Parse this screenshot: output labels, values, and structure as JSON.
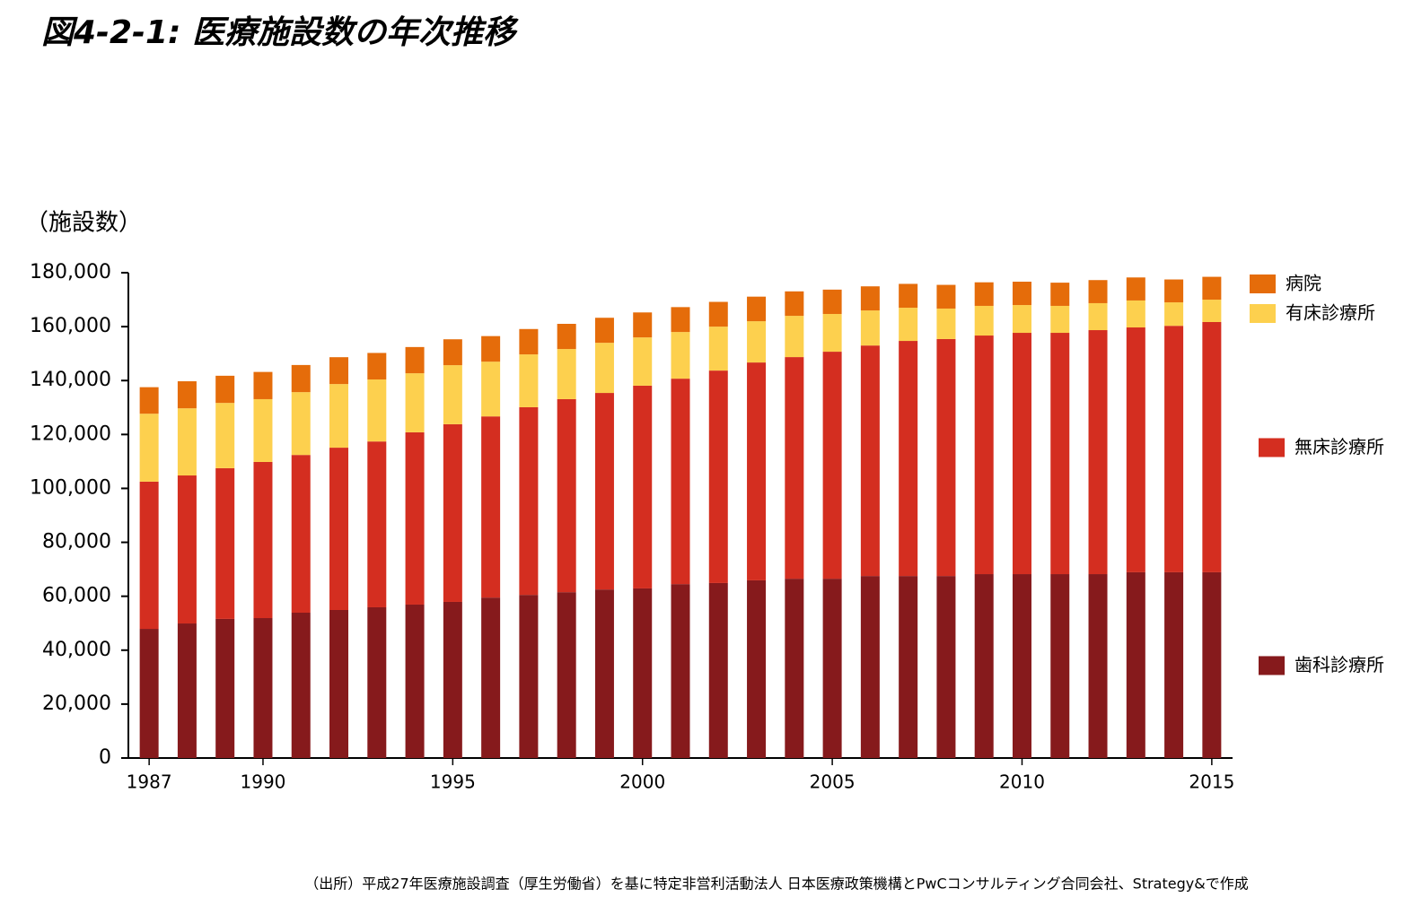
{
  "chart_data": {
    "type": "stacked-bar",
    "title": "図4-2-1: 医療施設数の年次推移",
    "y_label": "（施設数）",
    "source": "（出所）平成27年医療施設調査（厚生労働省）を基に特定非営利活動法人 日本医療政策機構とPwCコンサルティング合同会社、Strategy&で作成",
    "categories": [
      1987,
      null,
      null,
      1990,
      null,
      null,
      null,
      null,
      1995,
      null,
      null,
      null,
      null,
      2000,
      null,
      null,
      null,
      null,
      2005,
      null,
      null,
      null,
      null,
      2010,
      null,
      null,
      null,
      null,
      2015
    ],
    "series": [
      {
        "name": "歯科診療所",
        "color": "#861a1c",
        "values": [
          47900,
          49900,
          51600,
          51900,
          53900,
          54900,
          55900,
          56900,
          57900,
          59500,
          60500,
          61500,
          62500,
          62900,
          64500,
          64900,
          65900,
          66500,
          66500,
          67500,
          67500,
          67500,
          68200,
          68200,
          68200,
          68200,
          68900,
          68900,
          68900
        ]
      },
      {
        "name": "無床診療所",
        "color": "#d42e20",
        "values": [
          54600,
          54900,
          55900,
          57900,
          58500,
          60200,
          61500,
          63900,
          65900,
          67200,
          69600,
          71600,
          72900,
          75200,
          76200,
          78800,
          80800,
          82200,
          84200,
          85500,
          87200,
          87900,
          88500,
          89500,
          89500,
          90500,
          90800,
          91400,
          92800
        ]
      },
      {
        "name": "有床診療所",
        "color": "#fdd04e",
        "values": [
          25200,
          24900,
          24200,
          23300,
          23300,
          23600,
          23000,
          21900,
          21900,
          20300,
          19600,
          18600,
          18600,
          17900,
          17300,
          16300,
          15300,
          15300,
          14000,
          13000,
          12300,
          11300,
          11000,
          10300,
          10000,
          10000,
          10000,
          8700,
          8300
        ]
      },
      {
        "name": "病院",
        "color": "#e56c0a",
        "values": [
          9841,
          10034,
          10081,
          10096,
          10066,
          9963,
          9844,
          9731,
          9606,
          9490,
          9413,
          9333,
          9286,
          9266,
          9239,
          9187,
          9122,
          9077,
          9026,
          8943,
          8862,
          8794,
          8739,
          8670,
          8605,
          8565,
          8540,
          8493,
          8480
        ]
      }
    ],
    "ylim": [
      0,
      180000
    ],
    "yticks": [
      0,
      {
        "value": 20000,
        "label": "20,000"
      },
      {
        "value": 40000,
        "label": "40,000"
      },
      {
        "value": 60000,
        "label": "60,000"
      },
      {
        "value": 80000,
        "label": "80,000"
      },
      {
        "value": 100000,
        "label": "100,000"
      },
      {
        "value": 120000,
        "label": "120,000"
      },
      {
        "value": 140000,
        "label": "140,000"
      },
      {
        "value": 160000,
        "label": "160,000"
      },
      {
        "value": 180000,
        "label": "180,000"
      }
    ],
    "grid": false
  }
}
